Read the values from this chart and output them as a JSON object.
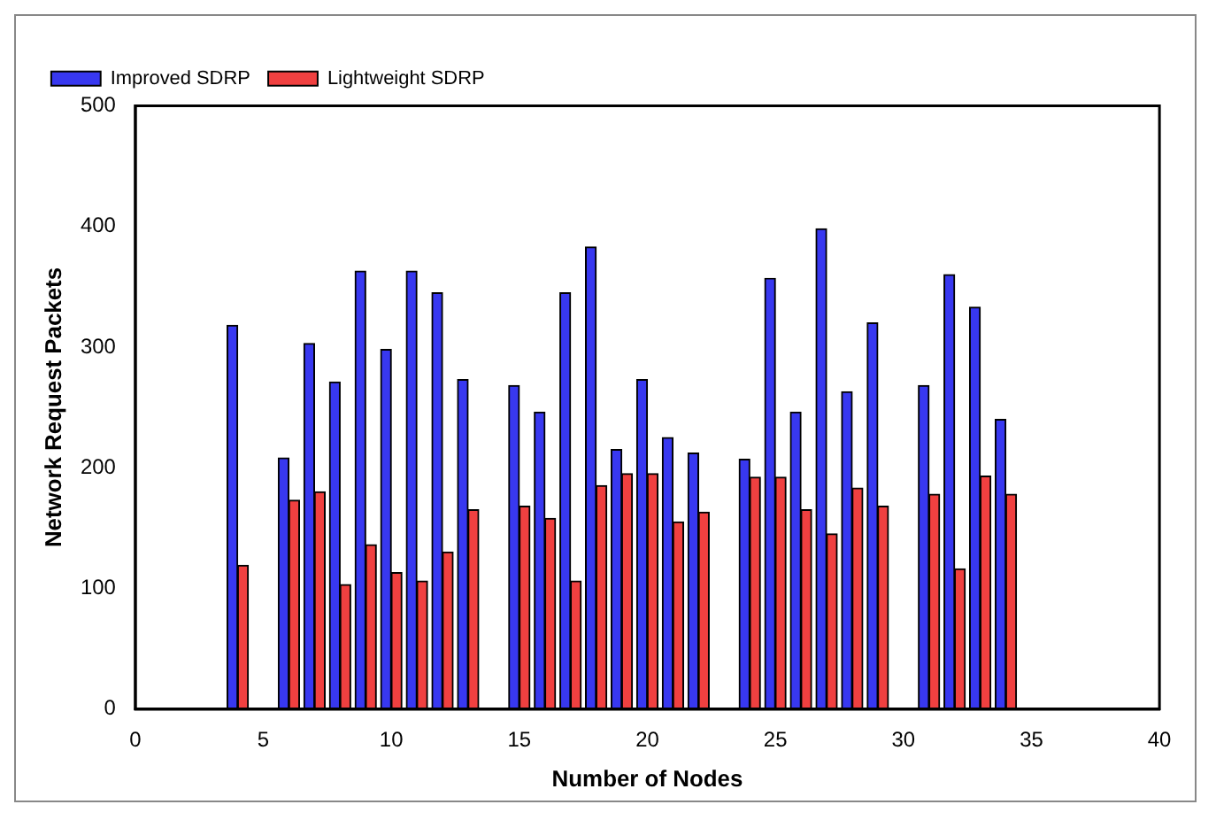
{
  "chart_data": {
    "type": "bar",
    "xlabel": "Number of Nodes",
    "ylabel": "Network Request Packets",
    "x": [
      4,
      6,
      7,
      8,
      9,
      10,
      11,
      12,
      13,
      15,
      16,
      17,
      18,
      19,
      20,
      21,
      22,
      24,
      25,
      26,
      27,
      28,
      29,
      31,
      32,
      33,
      34
    ],
    "series": [
      {
        "name": "Improved SDRP",
        "color": "#3838f0",
        "values": [
          318,
          208,
          303,
          271,
          363,
          298,
          363,
          345,
          273,
          268,
          246,
          345,
          383,
          215,
          273,
          225,
          212,
          207,
          357,
          246,
          398,
          263,
          320,
          268,
          360,
          333,
          240
        ]
      },
      {
        "name": "Lightweight SDRP",
        "color": "#f04040",
        "values": [
          119,
          173,
          180,
          103,
          136,
          113,
          106,
          130,
          165,
          168,
          158,
          106,
          185,
          195,
          195,
          155,
          163,
          192,
          192,
          165,
          145,
          183,
          168,
          178,
          116,
          193,
          178
        ]
      }
    ],
    "xlim": [
      0,
      40
    ],
    "xticks": [
      0,
      5,
      10,
      15,
      20,
      25,
      30,
      35,
      40
    ],
    "ylim": [
      0,
      500
    ],
    "yticks": [
      0,
      100,
      200,
      300,
      400,
      500
    ],
    "grid": false,
    "legend": "top left"
  }
}
